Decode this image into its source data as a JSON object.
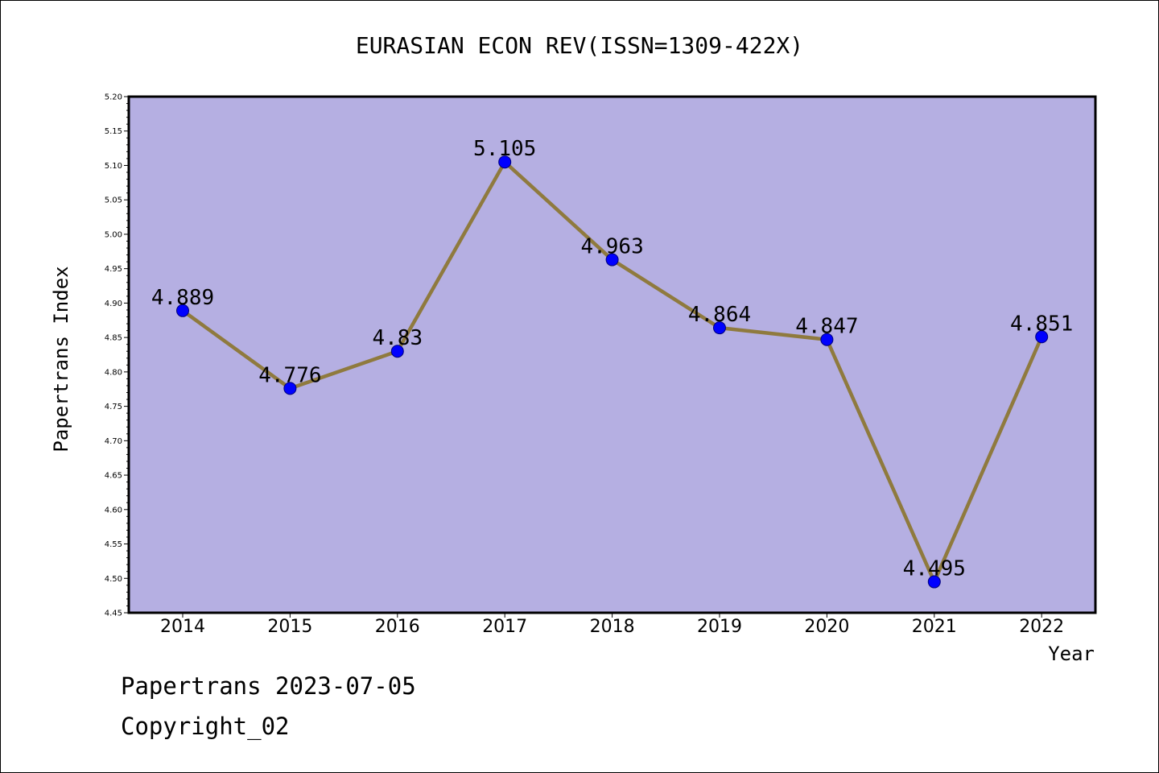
{
  "colors": {
    "plot_background": "#b5afe2",
    "line": "#8f7a3e",
    "marker": "#0000ff"
  },
  "footer": {
    "line1": "Papertrans 2023-07-05",
    "line2": "Copyright_02"
  },
  "chart_data": {
    "type": "line",
    "title": "EURASIAN ECON REV(ISSN=1309-422X)",
    "xlabel": "Year",
    "ylabel": "Papertrans Index",
    "categories": [
      "2014",
      "2015",
      "2016",
      "2017",
      "2018",
      "2019",
      "2020",
      "2021",
      "2022"
    ],
    "series": [
      {
        "values": [
          4.889,
          4.776,
          4.83,
          5.105,
          4.963,
          4.864,
          4.847,
          4.495,
          4.851
        ],
        "labels": [
          "4.889",
          "4.776",
          "4.83",
          "5.105",
          "4.963",
          "4.864",
          "4.847",
          "4.495",
          "4.851"
        ]
      }
    ],
    "ylim": [
      4.45,
      5.2
    ],
    "yticks": [
      "4.45",
      "4.50",
      "4.55",
      "4.60",
      "4.65",
      "4.70",
      "4.75",
      "4.80",
      "4.85",
      "4.90",
      "4.95",
      "5.00",
      "5.05",
      "5.10",
      "5.15",
      "5.20"
    ],
    "grid": false,
    "legend": "none"
  }
}
